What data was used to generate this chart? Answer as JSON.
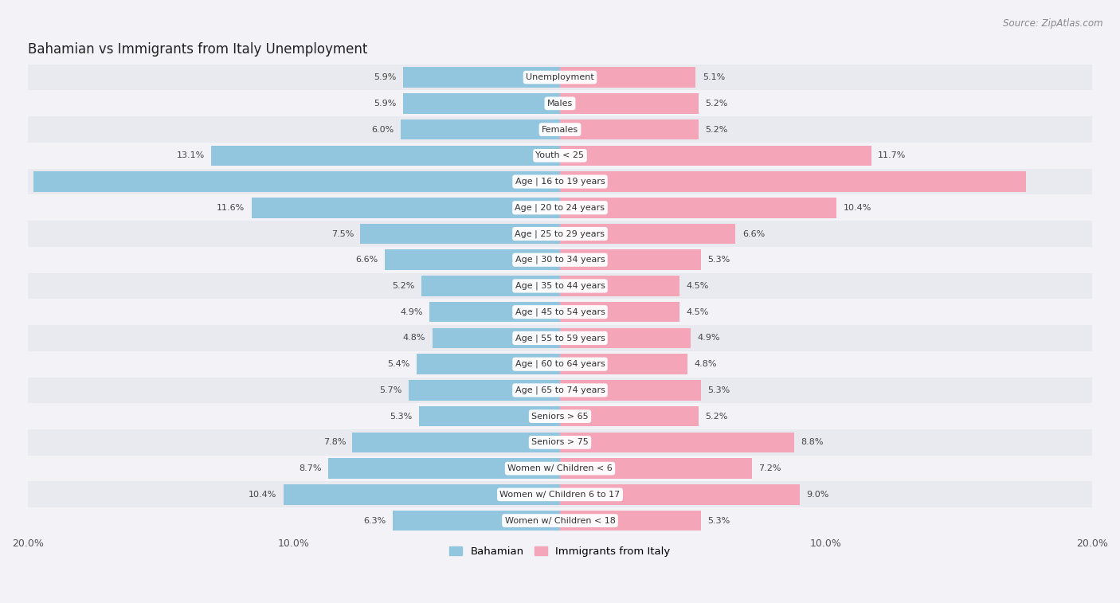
{
  "title": "Bahamian vs Immigrants from Italy Unemployment",
  "source": "Source: ZipAtlas.com",
  "categories": [
    "Unemployment",
    "Males",
    "Females",
    "Youth < 25",
    "Age | 16 to 19 years",
    "Age | 20 to 24 years",
    "Age | 25 to 29 years",
    "Age | 30 to 34 years",
    "Age | 35 to 44 years",
    "Age | 45 to 54 years",
    "Age | 55 to 59 years",
    "Age | 60 to 64 years",
    "Age | 65 to 74 years",
    "Seniors > 65",
    "Seniors > 75",
    "Women w/ Children < 6",
    "Women w/ Children 6 to 17",
    "Women w/ Children < 18"
  ],
  "bahamian": [
    5.9,
    5.9,
    6.0,
    13.1,
    19.8,
    11.6,
    7.5,
    6.6,
    5.2,
    4.9,
    4.8,
    5.4,
    5.7,
    5.3,
    7.8,
    8.7,
    10.4,
    6.3
  ],
  "italy": [
    5.1,
    5.2,
    5.2,
    11.7,
    17.5,
    10.4,
    6.6,
    5.3,
    4.5,
    4.5,
    4.9,
    4.8,
    5.3,
    5.2,
    8.8,
    7.2,
    9.0,
    5.3
  ],
  "bahamian_color": "#92c5de",
  "italy_color": "#f4a6b8",
  "bahamian_label": "Bahamian",
  "italy_label": "Immigrants from Italy",
  "xlim": 20.0,
  "bar_height": 0.78,
  "background_color": "#f2f2f7",
  "row_colors": [
    "#e9e9f0",
    "#f2f2f7"
  ],
  "title_fontsize": 12,
  "source_fontsize": 8.5,
  "label_fontsize": 8,
  "value_fontsize": 8
}
